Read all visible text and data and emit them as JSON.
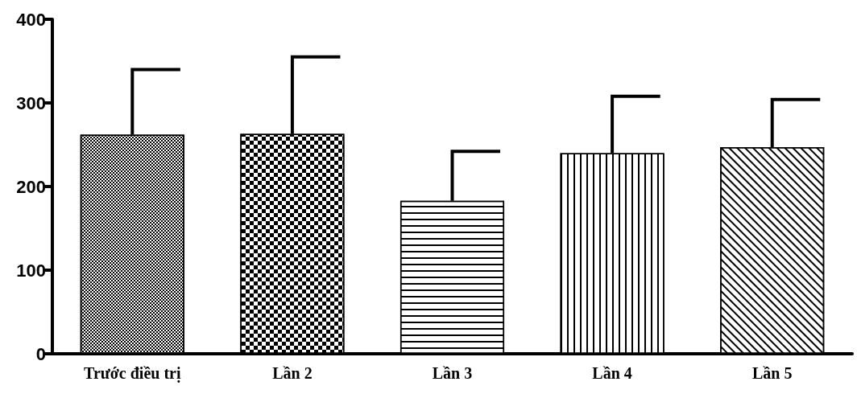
{
  "chart_data": {
    "type": "bar",
    "categories": [
      "Trước điều trị",
      "Lần 2",
      "Lần 3",
      "Lần 4",
      "Lần 5"
    ],
    "values": [
      262,
      263,
      183,
      240,
      247
    ],
    "colors": [
      "#ffffff",
      "#ffffff",
      "#ffffff",
      "#ffffff",
      "#ffffff"
    ],
    "errors": [
      [
        262,
        340
      ],
      [
        263,
        355
      ],
      [
        183,
        242
      ],
      [
        240,
        308
      ],
      [
        247,
        304
      ]
    ],
    "ylim": [
      0,
      400
    ],
    "yticks": [
      0,
      100,
      200,
      300,
      400
    ],
    "grid": false
  }
}
